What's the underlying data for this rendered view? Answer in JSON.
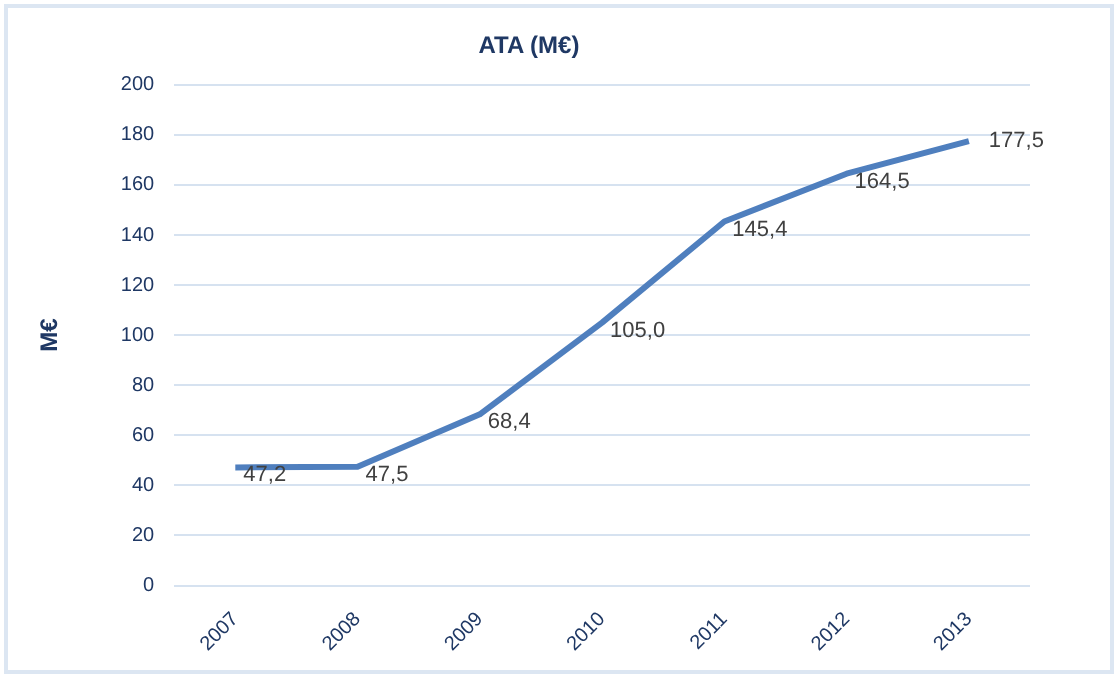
{
  "chart_data": {
    "type": "line",
    "title": "ATA (M€)",
    "ylabel": "M€",
    "categories": [
      "2007",
      "2008",
      "2009",
      "2010",
      "2011",
      "2012",
      "2013"
    ],
    "values": [
      47.2,
      47.5,
      68.4,
      105.0,
      145.4,
      164.5,
      177.5
    ],
    "value_labels": [
      "47,2",
      "47,5",
      "68,4",
      "105,0",
      "145,4",
      "164,5",
      "177,5"
    ],
    "color": "#4f7fbe",
    "ylim": [
      0,
      200
    ],
    "yticks": [
      0,
      20,
      40,
      60,
      80,
      100,
      120,
      140,
      160,
      180,
      200
    ],
    "grid": "y",
    "legend": false,
    "marker": "none",
    "line_style": "solid"
  }
}
